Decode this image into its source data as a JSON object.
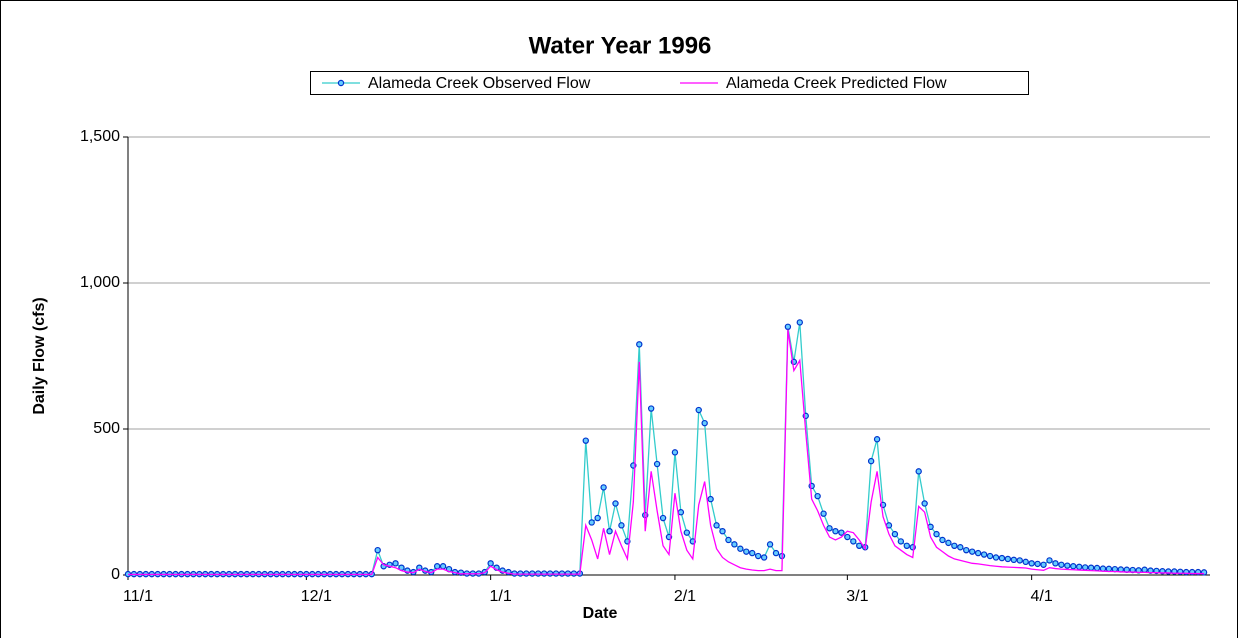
{
  "chart_data": {
    "type": "line",
    "title": "Water Year 1996",
    "x_label": "Date",
    "y_label": "Daily Flow (cfs)",
    "x": [
      0,
      1,
      2,
      3,
      4,
      5,
      6,
      7,
      8,
      9,
      10,
      11,
      12,
      13,
      14,
      15,
      16,
      17,
      18,
      19,
      20,
      21,
      22,
      23,
      24,
      25,
      26,
      27,
      28,
      29,
      30,
      31,
      32,
      33,
      34,
      35,
      36,
      37,
      38,
      39,
      40,
      41,
      42,
      43,
      44,
      45,
      46,
      47,
      48,
      49,
      50,
      51,
      52,
      53,
      54,
      55,
      56,
      57,
      58,
      59,
      60,
      61,
      62,
      63,
      64,
      65,
      66,
      67,
      68,
      69,
      70,
      71,
      72,
      73,
      74,
      75,
      76,
      77,
      78,
      79,
      80,
      81,
      82,
      83,
      84,
      85,
      86,
      87,
      88,
      89,
      90,
      91,
      92,
      93,
      94,
      95,
      96,
      97,
      98,
      99,
      100,
      101,
      102,
      103,
      104,
      105,
      106,
      107,
      108,
      109,
      110,
      111,
      112,
      113,
      114,
      115,
      116,
      117,
      118,
      119,
      120,
      121,
      122,
      123,
      124,
      125,
      126,
      127,
      128,
      129,
      130,
      131,
      132,
      133,
      134,
      135,
      136,
      137,
      138,
      139,
      140,
      141,
      142,
      143,
      144,
      145,
      146,
      147,
      148,
      149,
      150,
      151,
      152,
      153,
      154,
      155,
      156,
      157,
      158,
      159,
      160,
      161,
      162,
      163,
      164,
      165,
      166,
      167,
      168,
      169,
      170,
      171,
      172,
      173,
      174,
      175,
      176,
      177,
      178,
      179,
      180,
      181
    ],
    "series": [
      {
        "name": "Alameda Creek Observed Flow",
        "color": "#33cccc",
        "marker_color": "#0033cc",
        "marker_fill": "#66ccff",
        "values": [
          3,
          3,
          3,
          3,
          3,
          3,
          3,
          3,
          3,
          3,
          3,
          3,
          3,
          3,
          3,
          3,
          3,
          3,
          3,
          3,
          3,
          3,
          3,
          3,
          3,
          3,
          3,
          3,
          3,
          3,
          3,
          3,
          3,
          3,
          3,
          3,
          3,
          3,
          3,
          3,
          3,
          3,
          85,
          30,
          35,
          40,
          25,
          15,
          10,
          25,
          15,
          10,
          30,
          30,
          20,
          10,
          8,
          5,
          5,
          5,
          10,
          40,
          25,
          15,
          10,
          5,
          5,
          5,
          5,
          5,
          5,
          5,
          5,
          5,
          5,
          5,
          5,
          460,
          180,
          195,
          300,
          150,
          245,
          170,
          115,
          375,
          790,
          205,
          570,
          380,
          195,
          130,
          420,
          215,
          145,
          115,
          565,
          520,
          260,
          170,
          150,
          120,
          105,
          90,
          80,
          75,
          65,
          60,
          105,
          75,
          65,
          850,
          730,
          865,
          545,
          305,
          270,
          210,
          160,
          150,
          145,
          130,
          115,
          100,
          95,
          390,
          465,
          240,
          170,
          140,
          115,
          100,
          95,
          355,
          245,
          165,
          140,
          120,
          110,
          100,
          95,
          85,
          80,
          75,
          70,
          65,
          60,
          58,
          55,
          52,
          50,
          45,
          40,
          38,
          35,
          50,
          40,
          35,
          32,
          30,
          28,
          26,
          25,
          24,
          22,
          21,
          20,
          19,
          18,
          17,
          16,
          18,
          15,
          14,
          13,
          12,
          12,
          11,
          10,
          10,
          10,
          9
        ]
      },
      {
        "name": "Alameda Creek Predicted Flow",
        "color": "#ff00ff",
        "values": [
          2,
          2,
          2,
          2,
          2,
          2,
          2,
          2,
          2,
          2,
          2,
          2,
          2,
          2,
          2,
          2,
          2,
          2,
          2,
          2,
          2,
          2,
          2,
          2,
          2,
          2,
          2,
          2,
          2,
          2,
          2,
          2,
          2,
          2,
          2,
          2,
          2,
          2,
          2,
          2,
          2,
          2,
          60,
          35,
          30,
          25,
          15,
          10,
          8,
          20,
          12,
          8,
          20,
          20,
          12,
          8,
          4,
          4,
          4,
          4,
          8,
          30,
          18,
          10,
          6,
          3,
          3,
          3,
          3,
          3,
          3,
          3,
          3,
          3,
          3,
          3,
          3,
          170,
          120,
          55,
          160,
          70,
          150,
          100,
          55,
          250,
          730,
          150,
          355,
          220,
          100,
          70,
          280,
          150,
          85,
          55,
          240,
          320,
          170,
          90,
          60,
          45,
          35,
          25,
          20,
          17,
          15,
          15,
          20,
          15,
          15,
          840,
          700,
          735,
          490,
          260,
          220,
          170,
          130,
          120,
          130,
          150,
          145,
          120,
          90,
          250,
          355,
          200,
          140,
          100,
          85,
          70,
          60,
          235,
          215,
          130,
          95,
          80,
          65,
          55,
          50,
          45,
          40,
          38,
          35,
          32,
          30,
          28,
          27,
          26,
          25,
          24,
          20,
          18,
          16,
          25,
          22,
          20,
          19,
          18,
          17,
          16,
          15,
          14,
          13,
          12,
          12,
          11,
          10,
          10,
          9,
          9,
          8,
          8,
          7,
          7,
          6,
          6,
          6,
          5,
          5,
          5
        ]
      }
    ],
    "xlim": [
      0,
      182
    ],
    "xticks": [
      {
        "value": 0,
        "label": "11/1"
      },
      {
        "value": 30,
        "label": "12/1"
      },
      {
        "value": 61,
        "label": "1/1"
      },
      {
        "value": 92,
        "label": "2/1"
      },
      {
        "value": 121,
        "label": "3/1"
      },
      {
        "value": 152,
        "label": "4/1"
      }
    ],
    "ylim": [
      0,
      1500
    ],
    "yticks": [
      0,
      500,
      {
        "value": 1000,
        "label": "1,000"
      },
      {
        "value": 1500,
        "label": "1,500"
      }
    ],
    "grid": true,
    "legend": "top"
  }
}
